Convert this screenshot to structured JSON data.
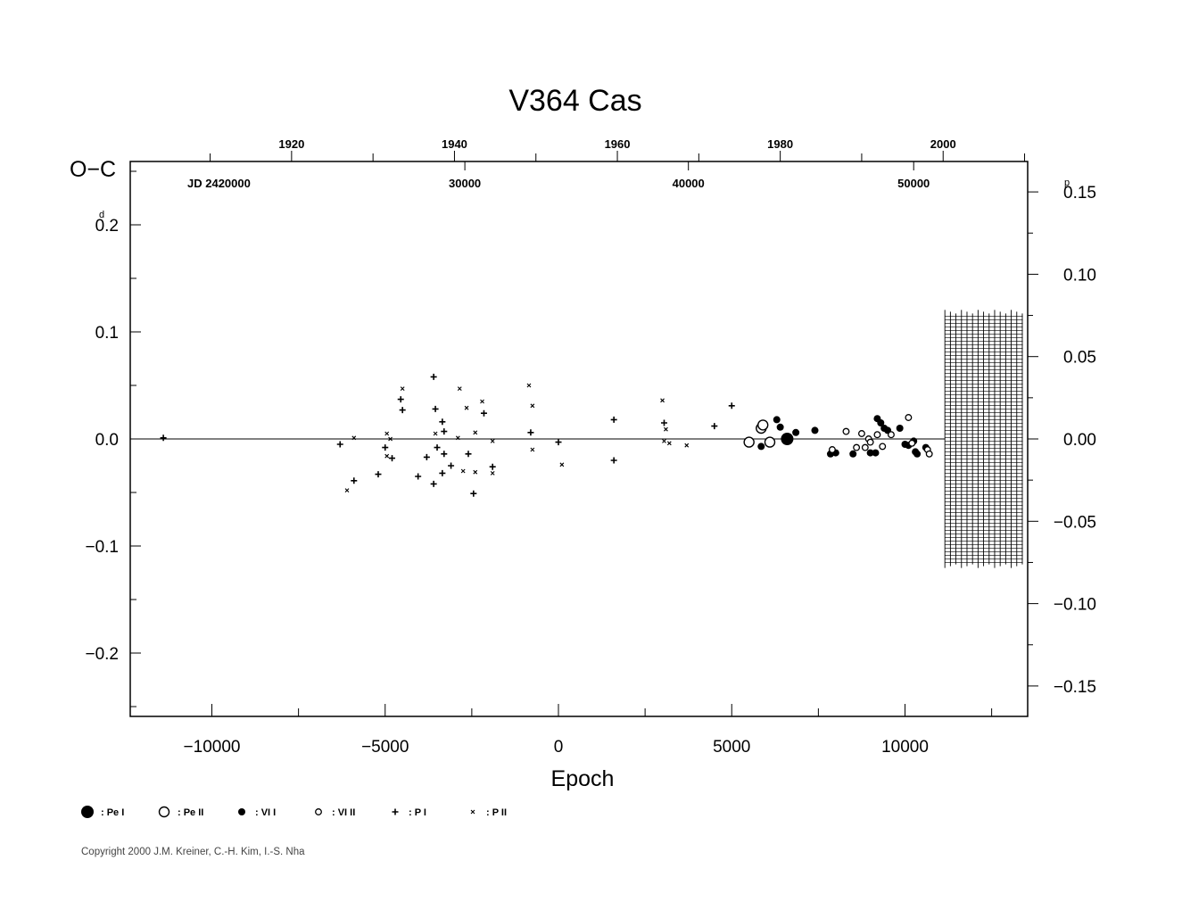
{
  "chart_data": {
    "type": "scatter",
    "title": "V364  Cas",
    "ylabel": "O−C",
    "xlabel": "Epoch",
    "y_unit_left": "d",
    "y_unit_right": "p",
    "jd_label": "JD  2420000",
    "xlim": [
      -12500,
      13500
    ],
    "ylim": [
      -0.26,
      0.26
    ],
    "right_ylim": [
      -0.1625,
      0.1625
    ],
    "x_ticks": [
      {
        "v": -10000,
        "label": "−10000"
      },
      {
        "v": -5000,
        "label": "−5000"
      },
      {
        "v": 0,
        "label": "0"
      },
      {
        "v": 5000,
        "label": "5000"
      },
      {
        "v": 10000,
        "label": "10000"
      }
    ],
    "y_ticks": [
      {
        "v": 0.2,
        "label": "0.2",
        "unit": true
      },
      {
        "v": 0.1,
        "label": "0.1"
      },
      {
        "v": 0.0,
        "label": "0.0"
      },
      {
        "v": -0.1,
        "label": "−0.1"
      },
      {
        "v": -0.2,
        "label": "−0.2"
      }
    ],
    "right_ticks": [
      {
        "v": 0.15,
        "label": "0.15",
        "unit": true
      },
      {
        "v": 0.1,
        "label": "0.10"
      },
      {
        "v": 0.05,
        "label": "0.05"
      },
      {
        "v": 0.0,
        "label": "0.00"
      },
      {
        "v": -0.05,
        "label": "−0.05"
      },
      {
        "v": -0.1,
        "label": "−0.10"
      },
      {
        "v": -0.15,
        "label": "−0.15"
      }
    ],
    "year_ticks": [
      {
        "x": -7700,
        "label": "1920"
      },
      {
        "x": -3000,
        "label": "1940"
      },
      {
        "x": 1700,
        "label": "1960"
      },
      {
        "x": 6400,
        "label": "1980"
      },
      {
        "x": 11100,
        "label": "2000"
      }
    ],
    "year_minor_x": [
      -10050,
      -5350,
      -650,
      4050,
      8750,
      13450
    ],
    "jd_ticks": [
      {
        "x": -2700,
        "label": "30000"
      },
      {
        "x": 3750,
        "label": "40000"
      },
      {
        "x": 10250,
        "label": "50000"
      }
    ],
    "hatch_region": {
      "x0": 11150,
      "x1": 13400,
      "y0": -0.118,
      "y1": 0.118
    },
    "legend": [
      {
        "symbol": "pe1",
        "label": ": Pe I"
      },
      {
        "symbol": "pe2",
        "label": ": Pe II"
      },
      {
        "symbol": "vi1",
        "label": ": VI I"
      },
      {
        "symbol": "vi2",
        "label": ": VI II"
      },
      {
        "symbol": "p1",
        "label": ": P I"
      },
      {
        "symbol": "p2",
        "label": ": P II"
      }
    ],
    "series": [
      {
        "symbol": "pe1",
        "points": [
          [
            6600,
            0.0
          ]
        ]
      },
      {
        "symbol": "pe2",
        "points": [
          [
            5500,
            -0.003
          ],
          [
            5850,
            0.01
          ],
          [
            5900,
            0.013
          ],
          [
            6100,
            -0.003
          ]
        ]
      },
      {
        "symbol": "vi1",
        "points": [
          [
            5850,
            -0.007
          ],
          [
            6300,
            0.018
          ],
          [
            6400,
            0.011
          ],
          [
            6850,
            0.006
          ],
          [
            7400,
            0.008
          ],
          [
            7850,
            -0.014
          ],
          [
            8000,
            -0.013
          ],
          [
            8500,
            -0.014
          ],
          [
            9000,
            -0.013
          ],
          [
            9150,
            -0.013
          ],
          [
            9200,
            0.019
          ],
          [
            9300,
            0.015
          ],
          [
            9400,
            0.01
          ],
          [
            9500,
            0.008
          ],
          [
            9850,
            0.01
          ],
          [
            10000,
            -0.005
          ],
          [
            10100,
            -0.006
          ],
          [
            10250,
            -0.002
          ],
          [
            10300,
            -0.012
          ],
          [
            10350,
            -0.014
          ],
          [
            10600,
            -0.008
          ]
        ]
      },
      {
        "symbol": "vi2",
        "points": [
          [
            7900,
            -0.01
          ],
          [
            8300,
            0.007
          ],
          [
            8600,
            -0.008
          ],
          [
            8750,
            0.005
          ],
          [
            8850,
            -0.008
          ],
          [
            8950,
            0.0
          ],
          [
            9000,
            -0.003
          ],
          [
            9200,
            0.004
          ],
          [
            9350,
            -0.007
          ],
          [
            9600,
            0.004
          ],
          [
            10100,
            0.02
          ],
          [
            10200,
            -0.004
          ],
          [
            10650,
            -0.01
          ],
          [
            10700,
            -0.014
          ]
        ]
      },
      {
        "symbol": "p1",
        "points": [
          [
            -11400,
            0.001
          ],
          [
            -6300,
            -0.005
          ],
          [
            -5900,
            -0.039
          ],
          [
            -5200,
            -0.033
          ],
          [
            -5000,
            -0.008
          ],
          [
            -4800,
            -0.018
          ],
          [
            -4550,
            0.037
          ],
          [
            -4500,
            0.027
          ],
          [
            -4050,
            -0.035
          ],
          [
            -3800,
            -0.017
          ],
          [
            -3600,
            0.058
          ],
          [
            -3600,
            -0.042
          ],
          [
            -3550,
            0.028
          ],
          [
            -3500,
            -0.008
          ],
          [
            -3350,
            -0.032
          ],
          [
            -3350,
            0.016
          ],
          [
            -3300,
            0.007
          ],
          [
            -3300,
            -0.014
          ],
          [
            -3100,
            -0.025
          ],
          [
            -2600,
            -0.014
          ],
          [
            -2450,
            -0.051
          ],
          [
            -2150,
            0.024
          ],
          [
            -1900,
            -0.026
          ],
          [
            -800,
            0.006
          ],
          [
            0,
            -0.003
          ],
          [
            1600,
            0.018
          ],
          [
            1600,
            -0.02
          ],
          [
            3050,
            0.015
          ],
          [
            4500,
            0.012
          ],
          [
            5000,
            0.031
          ]
        ]
      },
      {
        "symbol": "p2",
        "points": [
          [
            -6100,
            -0.048
          ],
          [
            -5900,
            0.001
          ],
          [
            -4950,
            0.005
          ],
          [
            -4950,
            -0.016
          ],
          [
            -4850,
            0.0
          ],
          [
            -4500,
            0.047
          ],
          [
            -3550,
            0.005
          ],
          [
            -2900,
            0.001
          ],
          [
            -2850,
            0.047
          ],
          [
            -2750,
            -0.03
          ],
          [
            -2650,
            0.029
          ],
          [
            -2400,
            -0.031
          ],
          [
            -2400,
            0.006
          ],
          [
            -2200,
            0.035
          ],
          [
            -1900,
            -0.032
          ],
          [
            -1900,
            -0.002
          ],
          [
            -850,
            0.05
          ],
          [
            -750,
            0.031
          ],
          [
            -750,
            -0.01
          ],
          [
            100,
            -0.024
          ],
          [
            3000,
            0.036
          ],
          [
            3050,
            -0.002
          ],
          [
            3100,
            0.009
          ],
          [
            3200,
            -0.004
          ],
          [
            3700,
            -0.006
          ]
        ]
      }
    ]
  },
  "copyright": "Copyright 2000 J.M. Kreiner, C.-H. Kim, I.-S. Nha"
}
